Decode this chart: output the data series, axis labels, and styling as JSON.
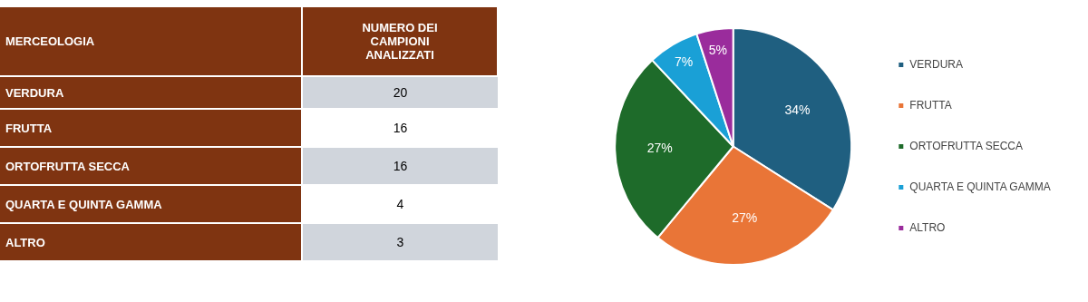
{
  "chart_data": [
    {
      "type": "other",
      "xlabel": "MERCEOLOGIA",
      "ylabel": "NUMERO DEI CAMPIONI ANALIZZATI",
      "categories": [
        "VERDURA",
        "FRUTTA",
        "ORTOFRUTTA SECCA",
        "QUARTA E QUINTA GAMMA",
        "ALTRO"
      ],
      "values": [
        20,
        16,
        16,
        4,
        3
      ],
      "data_labels": true
    },
    {
      "type": "pie",
      "categories": [
        "VERDURA",
        "FRUTTA",
        "ORTOFRUTTA SECCA",
        "QUARTA E QUINTA GAMMA",
        "ALTRO"
      ],
      "values": [
        34,
        27,
        27,
        7,
        5
      ],
      "colors": [
        "#1f5f80",
        "#e97537",
        "#1e6b2a",
        "#1aa0d6",
        "#9a2c9c"
      ],
      "value_labels": [
        "34%",
        "27%",
        "27%",
        "7%",
        "5%"
      ],
      "legend": "right"
    }
  ]
}
